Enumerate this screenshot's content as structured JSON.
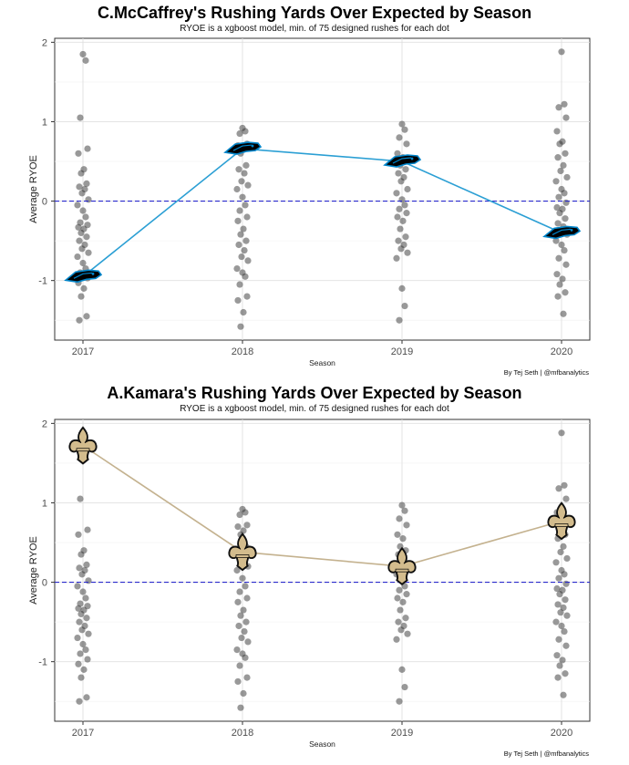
{
  "chart_data": [
    {
      "type": "scatter",
      "title": "C.McCaffrey's Rushing Yards Over Expected by Season",
      "subtitle": "RYOE is a xgboost model, min. of 75 designed rushes for each dot",
      "xlabel": "Season",
      "ylabel": "Average RYOE",
      "caption": "By Tej Seth | @mfbanalytics",
      "categories": [
        "2017",
        "2018",
        "2019",
        "2020"
      ],
      "y_ticks": [
        "-1",
        "0",
        "1",
        "2"
      ],
      "ylim": [
        -1.75,
        2.05
      ],
      "reference_line": 0,
      "grid": true,
      "team_color": "#0085CA",
      "line_color": "#2b9fd4",
      "team_logo": "panthers-logo",
      "player_line": [
        {
          "season": "2017",
          "ryoe": -0.95
        },
        {
          "season": "2018",
          "ryoe": 0.66
        },
        {
          "season": "2019",
          "ryoe": 0.5
        },
        {
          "season": "2020",
          "ryoe": -0.4
        }
      ]
    },
    {
      "type": "scatter",
      "title": "A.Kamara's Rushing Yards Over Expected by Season",
      "subtitle": "RYOE is a xgboost model, min. of 75 designed rushes for each dot",
      "xlabel": "Season",
      "ylabel": "Average RYOE",
      "caption": "By Tej Seth | @mfbanalytics",
      "categories": [
        "2017",
        "2018",
        "2019",
        "2020"
      ],
      "y_ticks": [
        "-1",
        "0",
        "1",
        "2"
      ],
      "ylim": [
        -1.75,
        2.05
      ],
      "reference_line": 0,
      "grid": true,
      "team_color": "#D3BC8D",
      "line_color": "#c4b28f",
      "team_logo": "saints-logo",
      "player_line": [
        {
          "season": "2017",
          "ryoe": 1.72
        },
        {
          "season": "2018",
          "ryoe": 0.38
        },
        {
          "season": "2019",
          "ryoe": 0.2
        },
        {
          "season": "2020",
          "ryoe": 0.77
        }
      ]
    }
  ],
  "league_dots": {
    "2017": [
      1.85,
      1.77,
      1.05,
      0.66,
      0.6,
      0.4,
      0.35,
      0.22,
      0.18,
      0.15,
      0.1,
      0.02,
      -0.05,
      -0.12,
      -0.2,
      -0.27,
      -0.3,
      -0.33,
      -0.35,
      -0.4,
      -0.45,
      -0.5,
      -0.55,
      -0.6,
      -0.65,
      -0.7,
      -0.78,
      -0.85,
      -0.9,
      -0.97,
      -1.03,
      -1.1,
      -1.2,
      -1.45,
      -1.5
    ],
    "2018": [
      0.92,
      0.88,
      0.85,
      0.72,
      0.7,
      0.65,
      0.6,
      0.45,
      0.4,
      0.35,
      0.25,
      0.2,
      0.15,
      0.05,
      -0.05,
      -0.12,
      -0.2,
      -0.25,
      -0.35,
      -0.42,
      -0.5,
      -0.55,
      -0.62,
      -0.7,
      -0.75,
      -0.85,
      -0.9,
      -0.95,
      -1.05,
      -1.2,
      -1.25,
      -1.4,
      -1.58
    ],
    "2019": [
      0.97,
      0.9,
      0.8,
      0.72,
      0.6,
      0.55,
      0.45,
      0.4,
      0.35,
      0.3,
      0.25,
      0.15,
      0.1,
      0.02,
      -0.05,
      -0.1,
      -0.15,
      -0.2,
      -0.25,
      -0.35,
      -0.45,
      -0.5,
      -0.55,
      -0.6,
      -0.65,
      -0.72,
      -1.1,
      -1.32,
      -1.5
    ],
    "2020": [
      1.88,
      1.22,
      1.18,
      1.05,
      0.88,
      0.75,
      0.72,
      0.6,
      0.55,
      0.45,
      0.38,
      0.3,
      0.25,
      0.15,
      0.1,
      0.05,
      -0.02,
      -0.08,
      -0.1,
      -0.15,
      -0.22,
      -0.28,
      -0.32,
      -0.38,
      -0.42,
      -0.5,
      -0.55,
      -0.62,
      -0.72,
      -0.8,
      -0.92,
      -0.98,
      -1.05,
      -1.15,
      -1.2,
      -1.42
    ]
  }
}
